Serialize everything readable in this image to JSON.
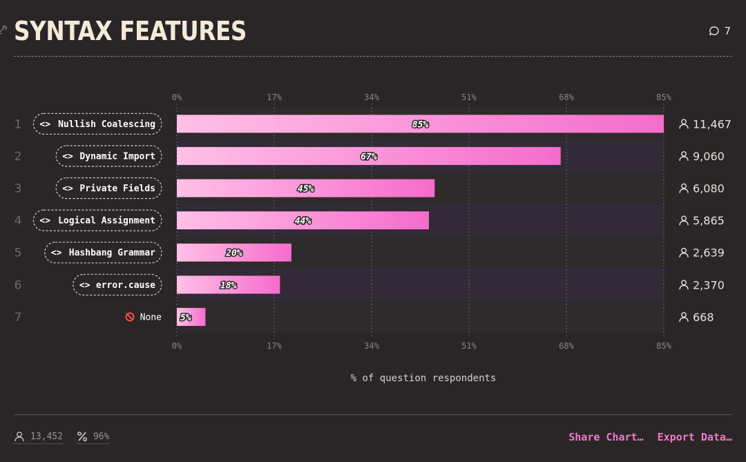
{
  "header": {
    "title": "SYNTAX FEATURES",
    "comment_count": "7"
  },
  "chart_data": {
    "type": "bar",
    "orientation": "horizontal",
    "xlabel": "% of question respondents",
    "xlim": [
      0,
      85
    ],
    "ticks": [
      "0%",
      "17%",
      "34%",
      "51%",
      "68%",
      "85%"
    ],
    "tick_values": [
      0,
      17,
      34,
      51,
      68,
      85
    ],
    "grid": true,
    "bar_gradient": [
      "#ffc0e6",
      "#f56ccc"
    ],
    "rows": [
      {
        "rank": "1",
        "label": "Nullish Coalescing",
        "value": 85,
        "value_label": "85%",
        "count": "11,467",
        "kind": "feature"
      },
      {
        "rank": "2",
        "label": "Dynamic Import",
        "value": 67,
        "value_label": "67%",
        "count": "9,060",
        "kind": "feature"
      },
      {
        "rank": "3",
        "label": "Private Fields",
        "value": 45,
        "value_label": "45%",
        "count": "6,080",
        "kind": "feature"
      },
      {
        "rank": "4",
        "label": "Logical Assignment",
        "value": 44,
        "value_label": "44%",
        "count": "5,865",
        "kind": "feature"
      },
      {
        "rank": "5",
        "label": "Hashbang Grammar",
        "value": 20,
        "value_label": "20%",
        "count": "2,639",
        "kind": "feature"
      },
      {
        "rank": "6",
        "label": "error.cause",
        "value": 18,
        "value_label": "18%",
        "count": "2,370",
        "kind": "feature"
      },
      {
        "rank": "7",
        "label": "None",
        "value": 5,
        "value_label": "5%",
        "count": "668",
        "kind": "none"
      }
    ]
  },
  "footer": {
    "respondents": "13,452",
    "percent": "96%",
    "share_label": "Share Chart…",
    "export_label": "Export Data…"
  }
}
